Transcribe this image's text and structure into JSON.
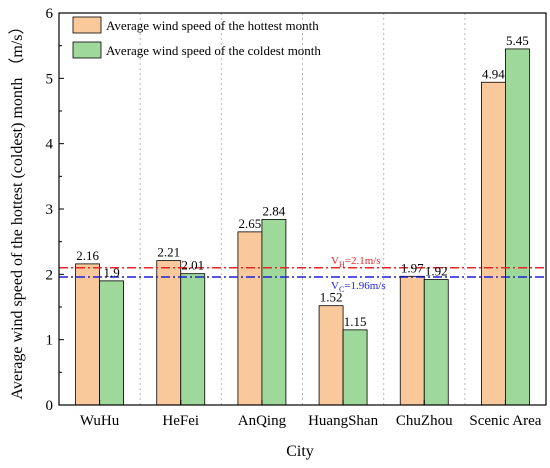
{
  "chart_data": {
    "type": "bar",
    "categories": [
      "WuHu",
      "HeFei",
      "AnQing",
      "HuangShan",
      "ChuZhou",
      "Scenic  Area"
    ],
    "series": [
      {
        "name": "Average wind speed of the hottest month",
        "values": [
          2.16,
          2.21,
          2.65,
          1.52,
          1.97,
          4.94
        ],
        "labels": [
          "2.16",
          "2.21",
          "2.65",
          "1.52",
          "1.97",
          "4.94"
        ],
        "color": "#F9C89B"
      },
      {
        "name": "Average wind speed of the coldest month",
        "values": [
          1.9,
          2.01,
          2.84,
          1.15,
          1.92,
          5.45
        ],
        "labels": [
          "1.9",
          "2.01",
          "2.84",
          "1.15",
          "1.92",
          "5.45"
        ],
        "color": "#9ED89A"
      }
    ],
    "xlabel": "City",
    "ylabel": "Average wind speed of the hottest (coldest) month （m/s）",
    "ylim": [
      0,
      6
    ],
    "yticks": [
      0,
      1,
      2,
      3,
      4,
      5,
      6
    ],
    "reference_lines": [
      {
        "value": 2.1,
        "label_main": "V",
        "label_sub": "H",
        "label_rest": "=2.1m/s",
        "color": "#E8262A",
        "style": "dash-dot"
      },
      {
        "value": 1.96,
        "label_main": "V",
        "label_sub": "C",
        "label_rest": "=1.96m/s",
        "color": "#1F1FD8",
        "style": "dash-dot"
      }
    ],
    "legend_position": "top-left",
    "grid": "vertical dotted separators between categories"
  }
}
